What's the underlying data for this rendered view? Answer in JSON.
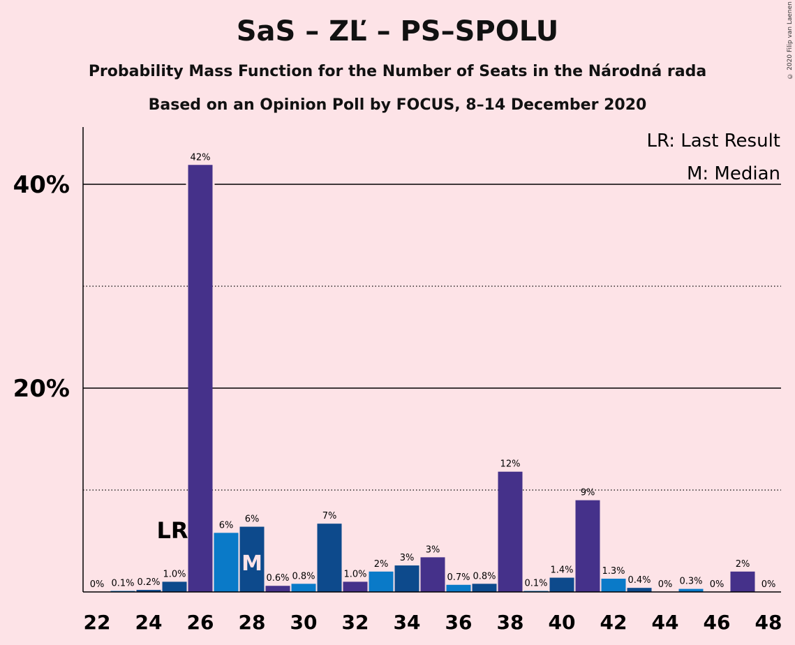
{
  "title": "SaS – ZĽ – PS–SPOLU",
  "subtitle1": "Probability Mass Function for the Number of Seats in the Národná rada",
  "subtitle2": "Based on an Opinion Poll by FOCUS, 8–14 December 2020",
  "copyright": "© 2020 Filip van Laenen",
  "legend": {
    "lr": "LR: Last Result",
    "median": "M: Median"
  },
  "markers": {
    "lr_label": "LR",
    "lr_seat": 25,
    "median_label": "M",
    "median_seat": 28
  },
  "colors": {
    "background": "#FDE3E7",
    "purple": "#45318A",
    "lightblue": "#0A7AC8",
    "darkblue": "#0D4A8C"
  },
  "chart_data": {
    "type": "bar",
    "x": [
      22,
      23,
      24,
      25,
      26,
      27,
      28,
      29,
      30,
      31,
      32,
      33,
      34,
      35,
      36,
      37,
      38,
      39,
      40,
      41,
      42,
      43,
      44,
      45,
      46,
      47,
      48
    ],
    "values": [
      0,
      0.1,
      0.2,
      1.0,
      41.9,
      5.8,
      6.4,
      0.6,
      0.8,
      6.7,
      1.0,
      2.0,
      2.6,
      3.4,
      0.7,
      0.8,
      11.8,
      0.1,
      1.4,
      9.0,
      1.3,
      0.4,
      0,
      0.3,
      0,
      2.0,
      0
    ],
    "data_labels": [
      "0%",
      "0.1%",
      "0.2%",
      "1.0%",
      "42%",
      "6%",
      "6%",
      "0.6%",
      "0.8%",
      "7%",
      "1.0%",
      "2%",
      "3%",
      "3%",
      "0.7%",
      "0.8%",
      "12%",
      "0.1%",
      "1.4%",
      "9%",
      "1.3%",
      "0.4%",
      "0%",
      "0.3%",
      "0%",
      "2%",
      "0%"
    ],
    "bar_colors": [
      "purple",
      "lightblue",
      "darkblue",
      "darkblue",
      "purple",
      "lightblue",
      "darkblue",
      "purple",
      "lightblue",
      "darkblue",
      "purple",
      "lightblue",
      "darkblue",
      "purple",
      "lightblue",
      "darkblue",
      "purple",
      "lightblue",
      "darkblue",
      "purple",
      "lightblue",
      "darkblue",
      "purple",
      "lightblue",
      "darkblue",
      "purple",
      "lightblue"
    ],
    "x_tick_labels": [
      "22",
      "24",
      "26",
      "28",
      "30",
      "32",
      "34",
      "36",
      "38",
      "40",
      "42",
      "44",
      "46",
      "48"
    ],
    "y_ticks": [
      {
        "value": 10,
        "label": "",
        "style": "dotted"
      },
      {
        "value": 20,
        "label": "20%",
        "style": "solid"
      },
      {
        "value": 30,
        "label": "",
        "style": "dotted"
      },
      {
        "value": 40,
        "label": "40%",
        "style": "solid"
      }
    ],
    "ylim": [
      0,
      46
    ],
    "xlabel": "",
    "ylabel": ""
  }
}
